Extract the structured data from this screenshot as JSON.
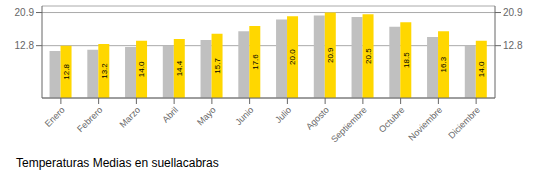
{
  "chart_data": {
    "type": "bar",
    "title": "Temperaturas Medias en suellacabras",
    "categories": [
      "Enero",
      "Febrero",
      "Marzo",
      "Abril",
      "Mayo",
      "Junio",
      "Julio",
      "Agosto",
      "Septiembre",
      "Octubre",
      "Noviembre",
      "Diciembre"
    ],
    "series": [
      {
        "color": "#C0C0C0",
        "values": [
          11.5,
          11.8,
          12.5,
          12.7,
          14.2,
          16.3,
          19.2,
          20.2,
          19.8,
          17.4,
          14.9,
          12.8
        ]
      },
      {
        "color": "#FFD700",
        "values": [
          12.8,
          13.2,
          14.0,
          14.4,
          15.7,
          17.6,
          20.0,
          20.9,
          20.5,
          18.5,
          16.3,
          14.0
        ],
        "data_labels": true,
        "value_labels": [
          "12.8",
          "13.2",
          "14.0",
          "14.4",
          "15.7",
          "17.6",
          "20.0",
          "20.9",
          "20.5",
          "18.5",
          "16.3",
          "14.0"
        ]
      }
    ],
    "ylim": [
      0,
      22.5
    ],
    "yticks": [
      12.8,
      20.9
    ],
    "y2lim": [
      0,
      22.5
    ],
    "y2ticks": [
      12.8,
      20.9
    ],
    "grid": true
  }
}
